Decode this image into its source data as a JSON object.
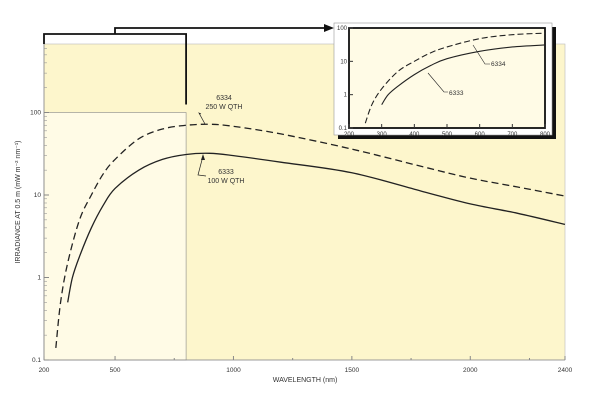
{
  "chart_data": {
    "type": "line",
    "xlabel": "WAVELENGTH (nm)",
    "ylabel": "IRRADIANCE AT 0.5 m (mW m⁻² nm⁻¹)",
    "xlim": [
      200,
      2400
    ],
    "ylim": [
      0.1,
      700
    ],
    "yscale": "log",
    "x_ticks": [
      200,
      500,
      1000,
      1500,
      2000,
      2400
    ],
    "y_ticks": [
      "0.1",
      "1",
      "10",
      "100"
    ],
    "grid": false,
    "colors": {
      "background": "#fdf6cc",
      "highlight": "#fffbe6",
      "line": "#222222"
    },
    "series": [
      {
        "name": "6334",
        "annotation": [
          "6334",
          "250 W QTH"
        ],
        "style": "dashed",
        "x": [
          250,
          270,
          300,
          350,
          400,
          450,
          500,
          600,
          700,
          800,
          900,
          1000,
          1200,
          1500,
          1800,
          2000,
          2200,
          2400
        ],
        "y": [
          0.14,
          0.5,
          1.5,
          5,
          10,
          18,
          27,
          48,
          63,
          70,
          72,
          68,
          55,
          36,
          22,
          16,
          12.5,
          9.7
        ]
      },
      {
        "name": "6333",
        "annotation": [
          "6333",
          "100 W QTH"
        ],
        "style": "solid",
        "x": [
          300,
          320,
          350,
          400,
          450,
          500,
          600,
          700,
          800,
          900,
          1000,
          1200,
          1500,
          1800,
          2000,
          2200,
          2400
        ],
        "y": [
          0.5,
          1.0,
          1.8,
          4,
          7.5,
          12,
          20,
          27,
          31,
          32,
          30,
          25,
          18.6,
          11,
          7.8,
          6,
          4.4
        ]
      }
    ],
    "inset": {
      "xlim": [
        200,
        800
      ],
      "ylim": [
        0.1,
        100
      ],
      "x_ticks": [
        "200",
        "300",
        "400",
        "500",
        "600",
        "700",
        "800"
      ],
      "y_ticks": [
        "0.1",
        "1",
        "10",
        "100"
      ],
      "labels": [
        "6334",
        "6333"
      ]
    }
  }
}
